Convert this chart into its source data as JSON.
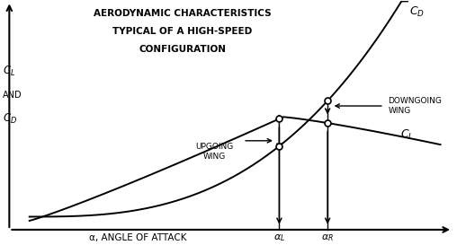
{
  "title_line1": "AERODYNAMIC CHARACTERISTICS",
  "title_line2": "TYPICAL OF A HIGH-SPEED",
  "title_line3": "CONFIGURATION",
  "xlabel": "α, ANGLE OF ATTACK",
  "upgoing_label": "UPGOING\nWING",
  "downgoing_label": "DOWNGOING\nWING",
  "background_color": "#ffffff",
  "line_color": "#000000",
  "alpha_L": 0.62,
  "alpha_R": 0.74,
  "figsize": [
    5.08,
    2.73
  ],
  "dpi": 100,
  "xlim": [
    -0.07,
    1.05
  ],
  "ylim": [
    -0.08,
    1.1
  ]
}
